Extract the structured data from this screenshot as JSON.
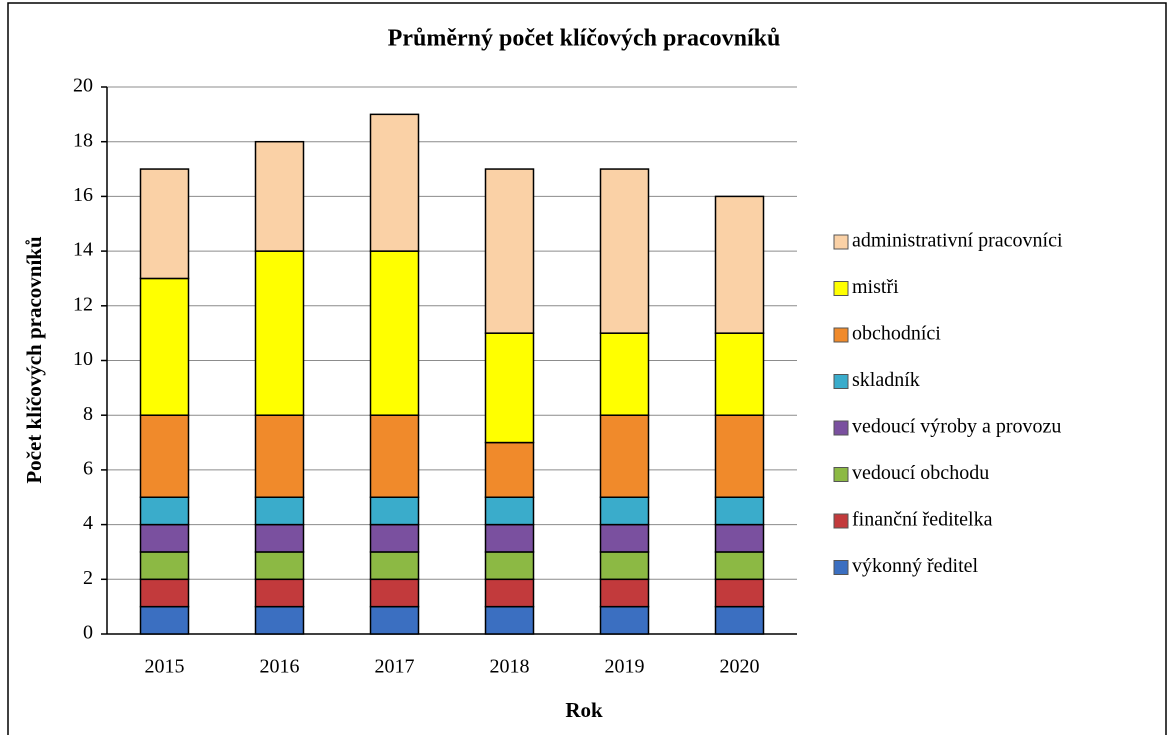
{
  "chart_data": {
    "type": "stacked_bar",
    "title": "Průměrný počet klíčových pracovníků",
    "xlabel": "Rok",
    "ylabel": "Počet klíčových pracovníků",
    "categories": [
      "2015",
      "2016",
      "2017",
      "2018",
      "2019",
      "2020"
    ],
    "series": [
      {
        "name": "výkonný ředitel",
        "color": "#3b6fc1",
        "values": [
          1,
          1,
          1,
          1,
          1,
          1
        ]
      },
      {
        "name": "finanční ředitelka",
        "color": "#c23a3c",
        "values": [
          1,
          1,
          1,
          1,
          1,
          1
        ]
      },
      {
        "name": "vedoucí obchodu",
        "color": "#8cb944",
        "values": [
          1,
          1,
          1,
          1,
          1,
          1
        ]
      },
      {
        "name": "vedoucí výroby a provozu",
        "color": "#7a509f",
        "values": [
          1,
          1,
          1,
          1,
          1,
          1
        ]
      },
      {
        "name": "skladník",
        "color": "#3aaccb",
        "values": [
          1,
          1,
          1,
          1,
          1,
          1
        ]
      },
      {
        "name": "obchodníci",
        "color": "#f08a2b",
        "values": [
          3,
          3,
          3,
          2,
          3,
          3
        ]
      },
      {
        "name": "mistři",
        "color": "#ffff00",
        "values": [
          5,
          6,
          6,
          4,
          3,
          3
        ]
      },
      {
        "name": "administrativní pracovníci",
        "color": "#fad1a6",
        "values": [
          4,
          4,
          5,
          6,
          6,
          5
        ]
      }
    ],
    "ylim": [
      0,
      20
    ],
    "yticks": [
      0,
      2,
      4,
      6,
      8,
      10,
      12,
      14,
      16,
      18,
      20
    ],
    "grid": true,
    "legend": "right"
  }
}
